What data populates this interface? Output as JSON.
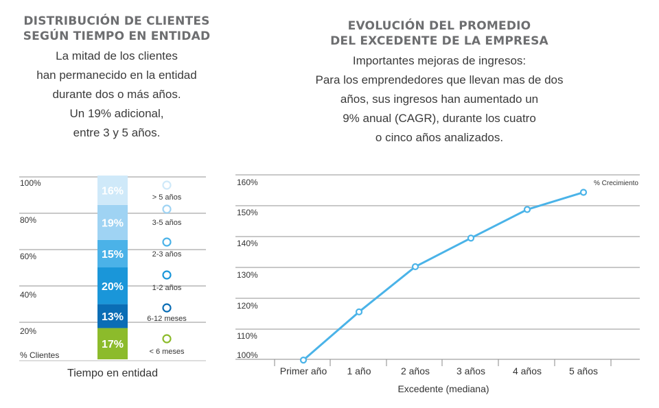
{
  "left": {
    "title_line1": "DISTRIBUCIÓN DE CLIENTES",
    "title_line2": "SEGÚN TIEMPO EN ENTIDAD",
    "desc_lines": [
      "La mitad de los clientes",
      "han permanecido en la entidad",
      "durante dos o más años.",
      "Un 19% adicional,",
      "entre 3 y 5 años."
    ]
  },
  "right": {
    "title_line1": "EVOLUCIÓN DEL PROMEDIO",
    "title_line2": "DEL EXCEDENTE DE LA EMPRESA",
    "desc_lines": [
      "Importantes mejoras de ingresos:",
      "Para los emprendedores que llevan mas de dos",
      "años, sus ingresos han aumentado un",
      "9% anual (CAGR), durante los cuatro",
      "o cinco años analizados."
    ]
  },
  "chart_data": [
    {
      "type": "bar",
      "stacked": true,
      "xlabel": "Tiempo en entidad",
      "ylabel": "% Clientes",
      "y_ticks": [
        "100%",
        "80%",
        "60%",
        "40%",
        "20%"
      ],
      "segments": [
        {
          "label": "< 6 meses",
          "value": 17,
          "text": "17%",
          "color": "#8cbb2b"
        },
        {
          "label": "6-12 meses",
          "value": 13,
          "text": "13%",
          "color": "#0a6db5"
        },
        {
          "label": "1-2 años",
          "value": 20,
          "text": "20%",
          "color": "#1a96d9"
        },
        {
          "label": "2-3 años",
          "value": 15,
          "text": "15%",
          "color": "#4bb2e8"
        },
        {
          "label": "3-5 años",
          "value": 19,
          "text": "19%",
          "color": "#9fd3f3"
        },
        {
          "label": "> 5 años",
          "value": 16,
          "text": "16%",
          "color": "#cfe9f9"
        }
      ],
      "grid": true
    },
    {
      "type": "line",
      "xlabel": "Excedente (mediana)",
      "ylabel": "% Crecimiento",
      "categories": [
        "Primer año",
        "1 año",
        "2 años",
        "3 años",
        "4 años",
        "5 años"
      ],
      "y_ticks": [
        "160%",
        "150%",
        "140%",
        "130%",
        "120%",
        "110%",
        "100%"
      ],
      "ylim": [
        100,
        160
      ],
      "series": [
        {
          "values": [
            98.5,
            114.5,
            129.5,
            139,
            148.5,
            154.2
          ],
          "color": "#4ab3e8"
        }
      ],
      "grid": true
    }
  ]
}
